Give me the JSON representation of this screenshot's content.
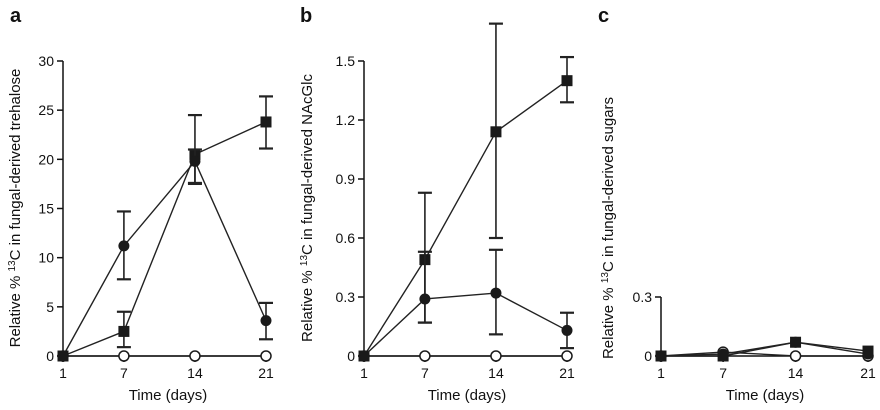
{
  "chart_data": [
    {
      "type": "line",
      "panel": "a",
      "xlabel": "Time (days)",
      "ylabel_prefix": "Relative % ",
      "ylabel_sup": "13",
      "ylabel_suffix": "C in fungal-derived trehalose",
      "x": [
        1,
        7,
        14,
        21
      ],
      "xlim": [
        1,
        21
      ],
      "ylim": [
        0,
        30
      ],
      "yticks": [
        0,
        5,
        10,
        15,
        20,
        25,
        30
      ],
      "ytick_labels": [
        "0",
        "5",
        "10",
        "15",
        "20",
        "25",
        "30"
      ],
      "grid": false,
      "series": [
        {
          "marker": "square",
          "values": [
            0,
            2.5,
            20.5,
            23.8
          ],
          "err_low": [
            0,
            1.6,
            3.0,
            2.7
          ],
          "err_high": [
            0,
            2.0,
            4.0,
            2.6
          ]
        },
        {
          "marker": "circle-filled",
          "values": [
            0,
            11.2,
            19.8,
            3.6
          ],
          "err_low": [
            0,
            3.4,
            2.2,
            1.9
          ],
          "err_high": [
            0,
            3.5,
            1.2,
            1.8
          ]
        },
        {
          "marker": "circle-open",
          "values": [
            0,
            0,
            0,
            0
          ],
          "err_low": [
            0,
            0,
            0,
            0
          ],
          "err_high": [
            0,
            0,
            0,
            0
          ]
        }
      ]
    },
    {
      "type": "line",
      "panel": "b",
      "xlabel": "Time (days)",
      "ylabel_prefix": "Relative % ",
      "ylabel_sup": "13",
      "ylabel_suffix": "C in fungal-derived NAcGlc",
      "x": [
        1,
        7,
        14,
        21
      ],
      "xlim": [
        1,
        21
      ],
      "ylim": [
        0,
        1.5
      ],
      "yticks": [
        0,
        0.3,
        0.6,
        0.9,
        1.2,
        1.5
      ],
      "ytick_labels": [
        "0",
        "0.3",
        "0.6",
        "0.9",
        "1.2",
        "1.5"
      ],
      "grid": false,
      "series": [
        {
          "marker": "square",
          "values": [
            0,
            0.49,
            1.14,
            1.4
          ],
          "err_low": [
            0,
            0.32,
            0.54,
            0.11
          ],
          "err_high": [
            0,
            0.34,
            0.55,
            0.12
          ]
        },
        {
          "marker": "circle-filled",
          "values": [
            0,
            0.29,
            0.32,
            0.13
          ],
          "err_low": [
            0,
            0.12,
            0.21,
            0.09
          ],
          "err_high": [
            0,
            0.24,
            0.22,
            0.09
          ]
        },
        {
          "marker": "circle-open",
          "values": [
            0,
            0,
            0,
            0
          ],
          "err_low": [
            0,
            0,
            0,
            0
          ],
          "err_high": [
            0,
            0,
            0,
            0
          ]
        }
      ]
    },
    {
      "type": "line",
      "panel": "c",
      "xlabel": "Time (days)",
      "ylabel_prefix": "Relative % ",
      "ylabel_sup": "13",
      "ylabel_suffix": "C in fungal-derived sugars",
      "x": [
        1,
        7,
        14,
        21
      ],
      "xlim": [
        1,
        21
      ],
      "ylim": [
        0,
        0.3
      ],
      "yticks": [
        0,
        0.3
      ],
      "ytick_labels": [
        "0",
        "0.3"
      ],
      "grid": false,
      "series": [
        {
          "marker": "square",
          "values": [
            0,
            0,
            0.07,
            0.025
          ],
          "err_low": [
            0,
            0,
            0,
            0
          ],
          "err_high": [
            0,
            0,
            0,
            0
          ]
        },
        {
          "marker": "circle-filled",
          "values": [
            0,
            0.01,
            0.07,
            0.01
          ],
          "err_low": [
            0,
            0,
            0,
            0
          ],
          "err_high": [
            0,
            0,
            0,
            0
          ]
        },
        {
          "marker": "circle-open",
          "values": [
            0,
            0.02,
            0,
            0
          ],
          "err_low": [
            0,
            0,
            0,
            0
          ],
          "err_high": [
            0,
            0,
            0,
            0
          ]
        }
      ]
    }
  ]
}
